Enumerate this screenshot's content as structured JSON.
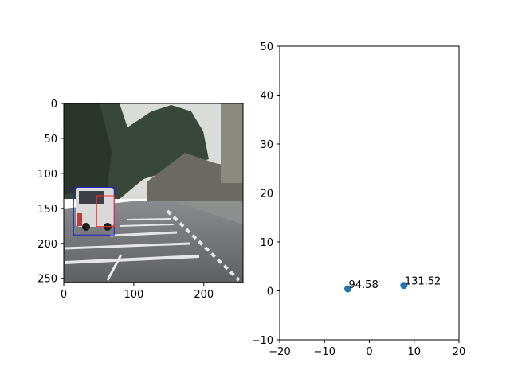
{
  "chart_data": [
    {
      "type": "image",
      "content": "camera frame: street scene with a white van outlined by a blue bounding box and red edges",
      "xlim": [
        0,
        256
      ],
      "ylim": [
        256,
        0
      ],
      "xticks": [
        0,
        100,
        200
      ],
      "yticks": [
        0,
        50,
        100,
        150,
        200,
        250
      ],
      "boxes": [
        {
          "color": "#1f1fd0",
          "x0": 14,
          "y0": 120,
          "x1": 72,
          "y1": 188
        },
        {
          "color": "#ff2a2a",
          "x0": 47,
          "y0": 132,
          "x1": 72,
          "y1": 176
        }
      ],
      "colors": {
        "sky": "#d9dcd8",
        "trees": "#39463a",
        "road": "#707174",
        "lines": "#e6e6e6",
        "van": "#d9d9d9"
      }
    },
    {
      "type": "scatter",
      "xlim": [
        -20,
        20
      ],
      "ylim": [
        -10,
        50
      ],
      "xticks": [
        -20,
        -10,
        0,
        10,
        20
      ],
      "yticks": [
        -10,
        0,
        10,
        20,
        30,
        40,
        50
      ],
      "points": [
        {
          "x": -4.8,
          "y": 0.4,
          "label": "94.58"
        },
        {
          "x": 7.7,
          "y": 1.1,
          "label": "131.52"
        }
      ],
      "marker_color": "#1f77b4"
    }
  ]
}
